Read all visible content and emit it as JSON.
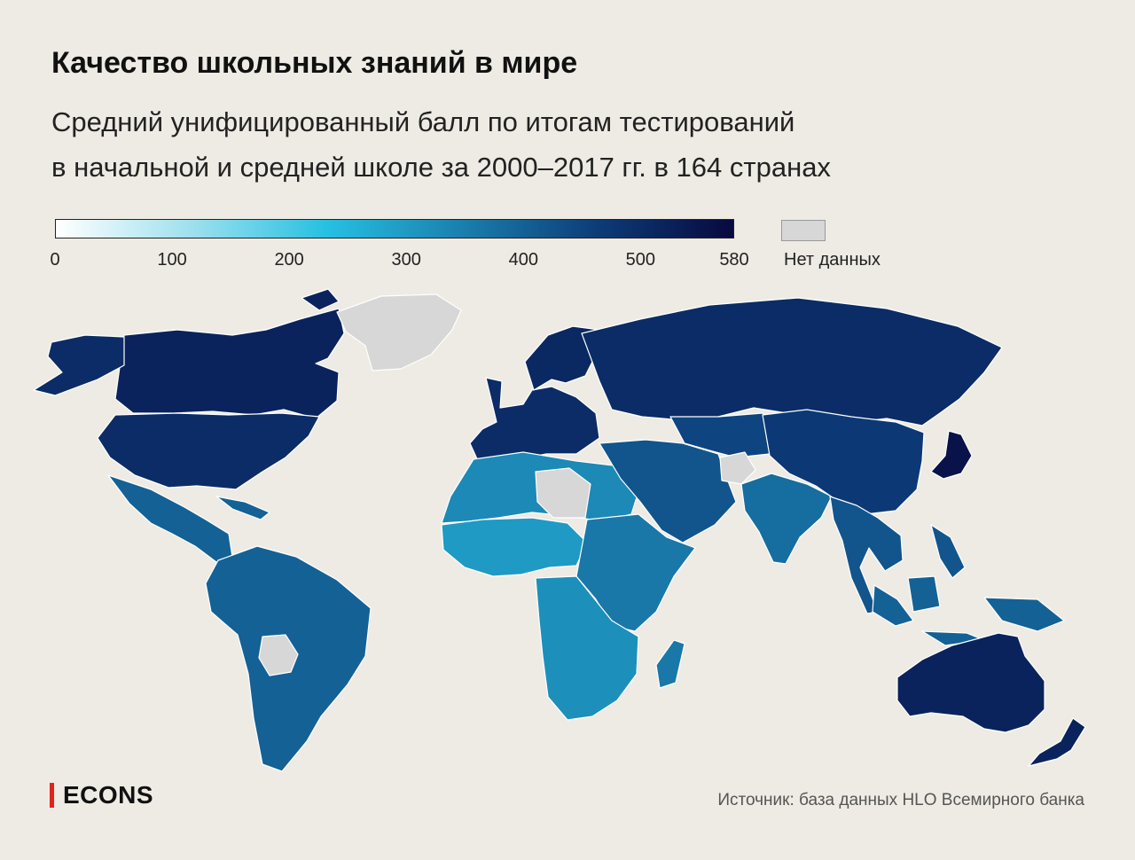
{
  "title": "Качество школьных знаний в мире",
  "subtitle": {
    "line1": "Средний унифицированный балл по итогам тестирований",
    "line2": "в начальной и средней школе за 2000–2017 гг. в 164 странах"
  },
  "legend": {
    "ticks": [
      "0",
      "100",
      "200",
      "300",
      "400",
      "500",
      "580"
    ],
    "tick_values": [
      0,
      100,
      200,
      300,
      400,
      500,
      580
    ],
    "min": 0,
    "max": 580,
    "gradient_colors": [
      "#ffffff",
      "#9ee0ee",
      "#26c0e2",
      "#1a7fae",
      "#0c3c78",
      "#08093f"
    ],
    "no_data_label": "Нет данных",
    "no_data_color": "#d7d7d7"
  },
  "map": {
    "background": "#eeebe4",
    "border_color": "#ffffff",
    "regions": [
      {
        "name": "canada",
        "score": 520
      },
      {
        "name": "united-states",
        "score": 500
      },
      {
        "name": "alaska",
        "score": 500
      },
      {
        "name": "greenland",
        "score": null
      },
      {
        "name": "mexico-central-america",
        "score": 400
      },
      {
        "name": "south-america",
        "score": 400
      },
      {
        "name": "bolivia",
        "score": null
      },
      {
        "name": "western-europe",
        "score": 500
      },
      {
        "name": "scandinavia",
        "score": 510
      },
      {
        "name": "russia",
        "score": 500
      },
      {
        "name": "north-africa",
        "score": 330
      },
      {
        "name": "libya",
        "score": null
      },
      {
        "name": "west-africa",
        "score": 300
      },
      {
        "name": "east-africa",
        "score": 360
      },
      {
        "name": "southern-africa",
        "score": 320
      },
      {
        "name": "middle-east",
        "score": 420
      },
      {
        "name": "central-asia",
        "score": 450
      },
      {
        "name": "afghanistan",
        "score": null
      },
      {
        "name": "india",
        "score": 380
      },
      {
        "name": "china",
        "score": 470
      },
      {
        "name": "japan",
        "score": 560
      },
      {
        "name": "southeast-asia",
        "score": 420
      },
      {
        "name": "indonesia",
        "score": 400
      },
      {
        "name": "australia",
        "score": 520
      },
      {
        "name": "new-zealand",
        "score": 520
      },
      {
        "name": "madagascar",
        "score": 360
      }
    ]
  },
  "brand": "ECONS",
  "source": "Источник: база данных HLO Всемирного банка"
}
